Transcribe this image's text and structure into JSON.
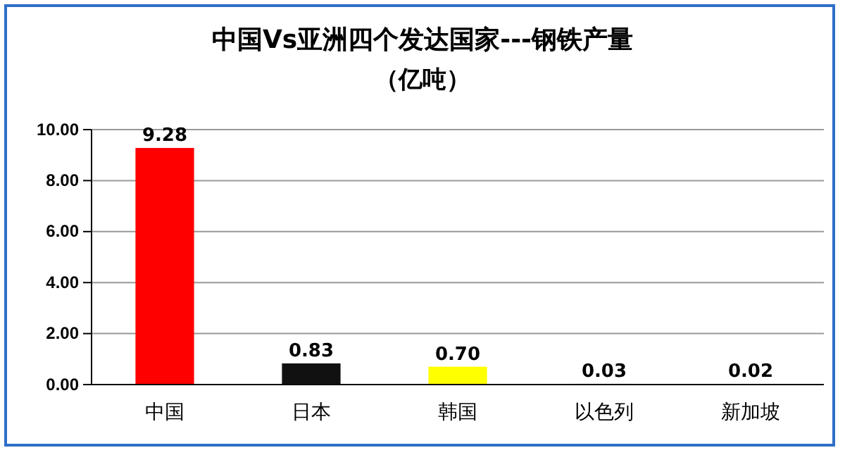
{
  "chart_data": {
    "type": "bar",
    "title": "中国Vs亚洲四个发达国家---钢铁产量",
    "subtitle": "（亿吨）",
    "categories": [
      "中国",
      "日本",
      "韩国",
      "以色列",
      "新加坡"
    ],
    "values": [
      9.28,
      0.83,
      0.7,
      0.03,
      0.02
    ],
    "colors": [
      "#ff0000",
      "#111111",
      "#ffff00",
      "#5bb8e0",
      "#9b7cc9"
    ],
    "value_labels": [
      "9.28",
      "0.83",
      "0.70",
      "0.03",
      "0.02"
    ],
    "ylim": [
      0,
      10
    ],
    "yticks": [
      {
        "value": 0,
        "label": "0.00"
      },
      {
        "value": 2,
        "label": "2.00"
      },
      {
        "value": 4,
        "label": "4.00"
      },
      {
        "value": 6,
        "label": "6.00"
      },
      {
        "value": 8,
        "label": "8.00"
      },
      {
        "value": 10,
        "label": "10.00"
      }
    ],
    "grid": "y"
  }
}
